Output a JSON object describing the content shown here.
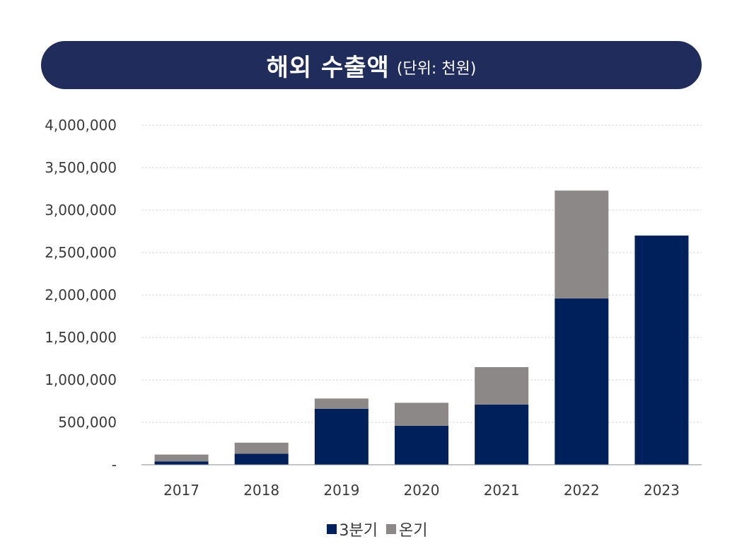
{
  "title": {
    "main": "해외 수출액",
    "unit": "(단위: 천원)"
  },
  "colors": {
    "banner": "#1f2c5c",
    "q3": "#00205b",
    "annual": "#8c8887",
    "grid": "#d9d9d9",
    "axis": "#8a8a8a"
  },
  "chart_data": {
    "type": "bar",
    "stacked": true,
    "categories": [
      "2017",
      "2018",
      "2019",
      "2020",
      "2021",
      "2022",
      "2023"
    ],
    "series": [
      {
        "name": "3분기",
        "values": [
          40000,
          130000,
          660000,
          460000,
          710000,
          1960000,
          2700000
        ]
      },
      {
        "name": "온기",
        "values": [
          80000,
          130000,
          120000,
          270000,
          440000,
          1270000,
          0
        ]
      }
    ],
    "title": "해외 수출액",
    "ylim": [
      0,
      4000000
    ],
    "yticks": [
      0,
      500000,
      1000000,
      1500000,
      2000000,
      2500000,
      3000000,
      3500000,
      4000000
    ],
    "ytick_labels": [
      "-",
      "500,000",
      "1,000,000",
      "1,500,000",
      "2,000,000",
      "2,500,000",
      "3,000,000",
      "3,500,000",
      "4,000,000"
    ],
    "grid": true,
    "legend": "bottom"
  }
}
